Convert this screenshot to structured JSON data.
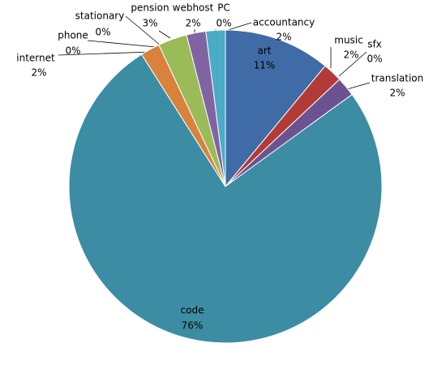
{
  "chart_data": {
    "type": "pie",
    "categories": [
      "art",
      "music",
      "sfx",
      "translation",
      "code",
      "internet",
      "phone",
      "stationary",
      "pension",
      "webhost",
      "accountancy",
      "PC"
    ],
    "values": [
      11,
      2,
      0,
      2,
      76,
      2,
      0,
      0,
      3,
      2,
      2,
      0
    ],
    "value_labels": [
      "11%",
      "2%",
      "0%",
      "2%",
      "76%",
      "2%",
      "0%",
      "0%",
      "3%",
      "2%",
      "2%",
      "0%"
    ],
    "colors": [
      "#3f6ba6",
      "#b23b37",
      "#8fb04f",
      "#6b5391",
      "#3c8da4",
      "#d9823b",
      "#3a62a0",
      "#b03a36",
      "#9bbb59",
      "#8064a2",
      "#4bacc6",
      "#f79646"
    ]
  }
}
